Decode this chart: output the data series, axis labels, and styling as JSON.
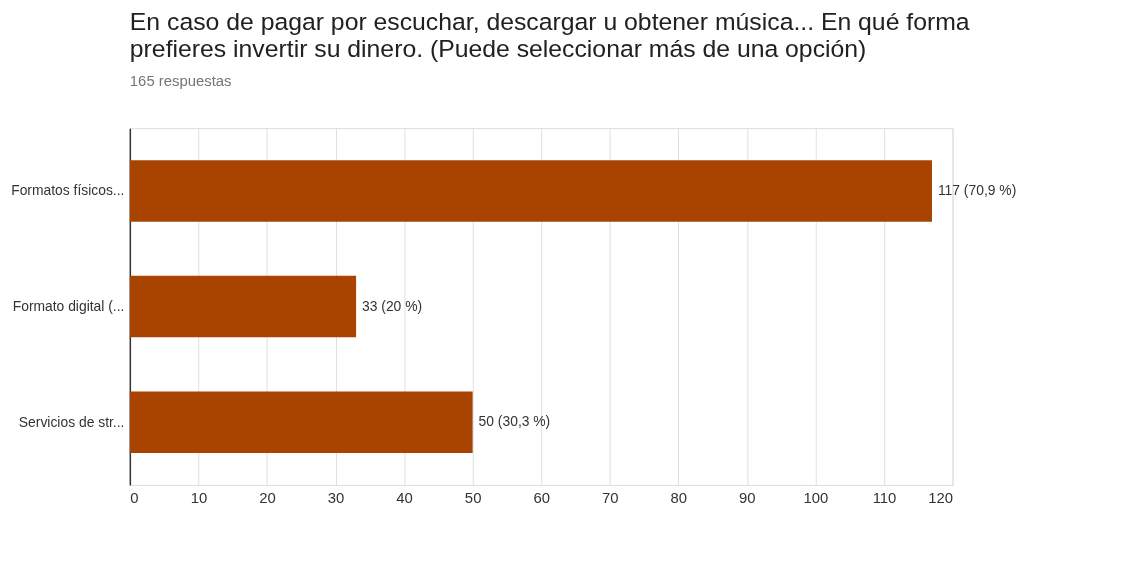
{
  "chart_data": {
    "type": "bar",
    "orientation": "horizontal",
    "title": [
      "En caso de pagar por escuchar, descargar u obtener música... En qué forma",
      "prefieres invertir su dinero. (Puede seleccionar más de una opción)"
    ],
    "subtitle": "165 respuestas",
    "categories": [
      "Formatos físicos...",
      "Formato digital (...",
      "Servicios de str..."
    ],
    "values": [
      117,
      33,
      50
    ],
    "value_labels": [
      "117 (70,9 %)",
      "33 (20 %)",
      "50 (30,3 %)"
    ],
    "color": "#a84300",
    "xlim": [
      0,
      120
    ],
    "xticks": [
      0,
      10,
      20,
      30,
      40,
      50,
      60,
      70,
      80,
      90,
      100,
      110,
      120
    ],
    "grid": "x"
  }
}
